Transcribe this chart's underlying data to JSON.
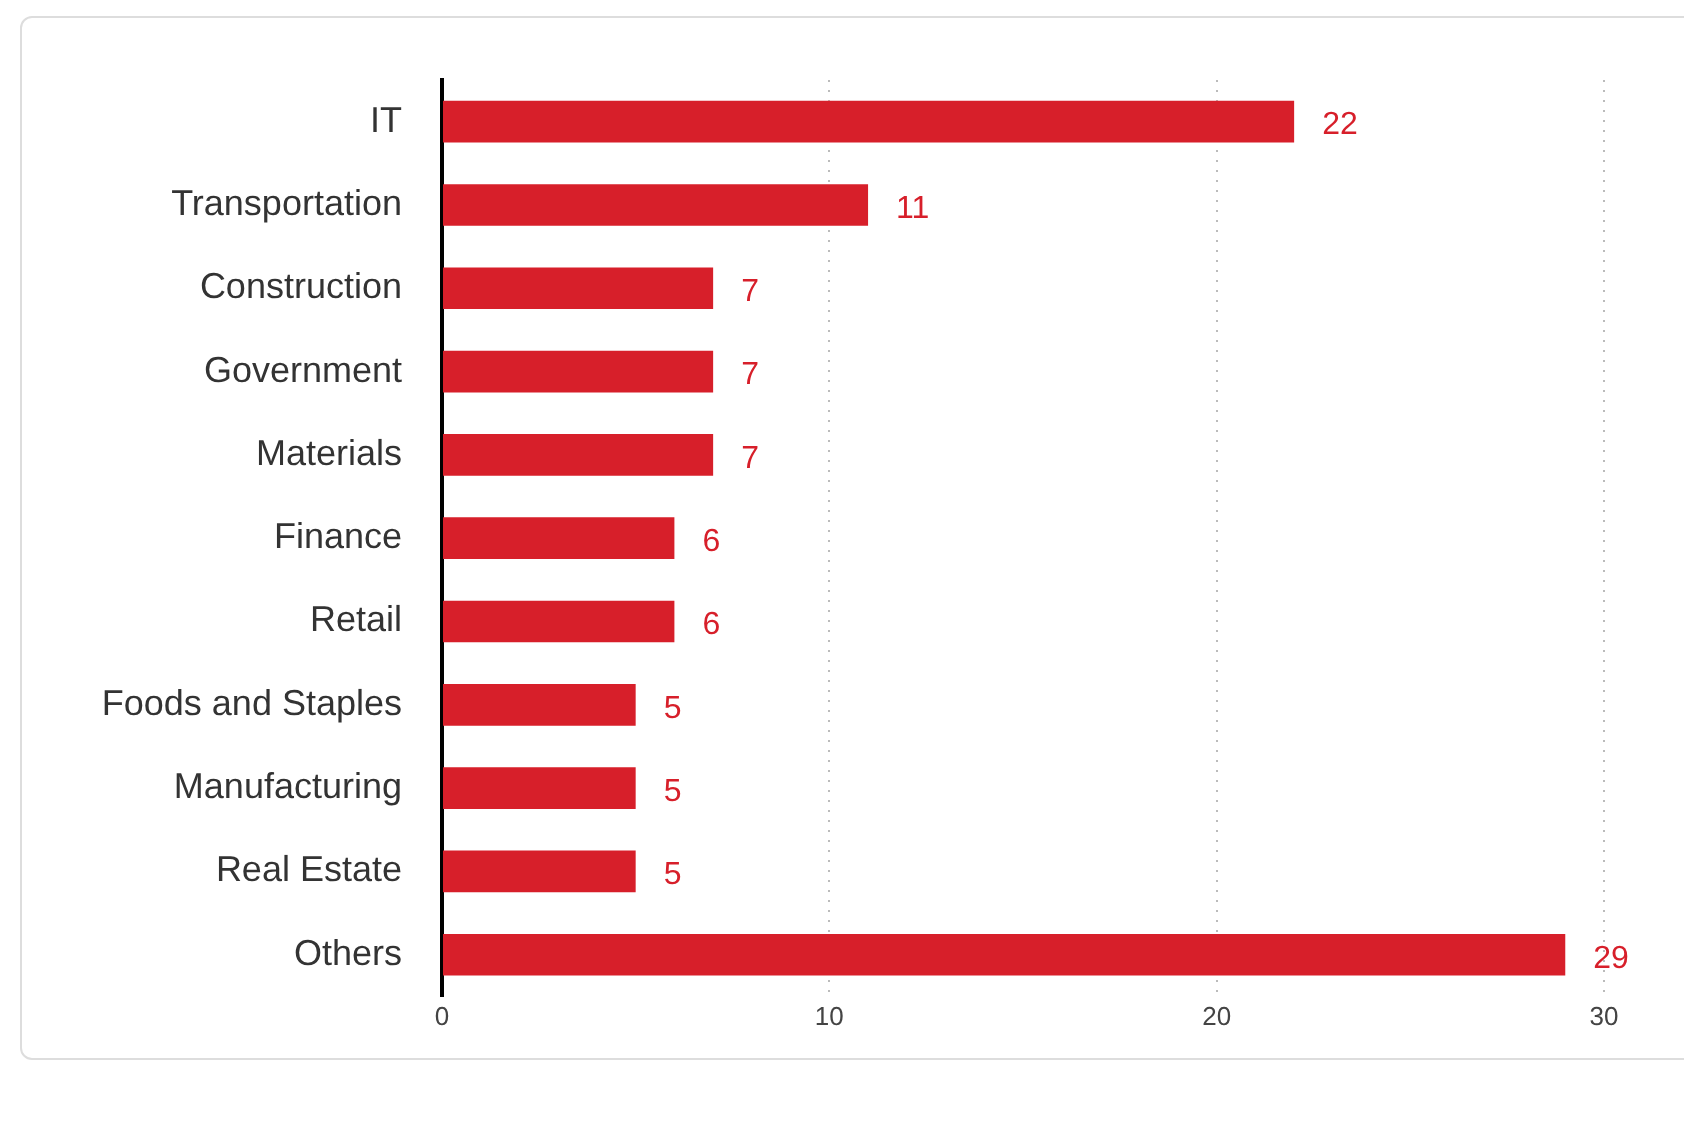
{
  "chart_data": {
    "type": "bar",
    "orientation": "horizontal",
    "categories": [
      "IT",
      "Transportation",
      "Construction",
      "Government",
      "Materials",
      "Finance",
      "Retail",
      "Foods and Staples",
      "Manufacturing",
      "Real Estate",
      "Others"
    ],
    "values": [
      22,
      11,
      7,
      7,
      7,
      6,
      6,
      5,
      5,
      5,
      29
    ],
    "color": "#d71f2a",
    "xlim": [
      0,
      30
    ],
    "xticks": [
      0,
      10,
      20,
      30
    ],
    "grid": "x",
    "data_labels": true
  }
}
